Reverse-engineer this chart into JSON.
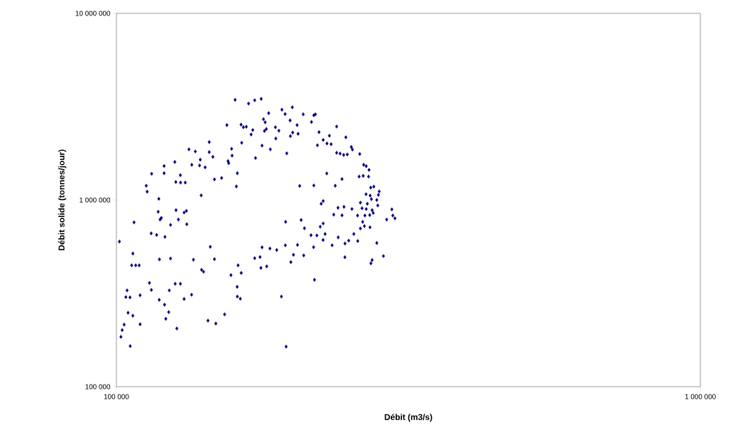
{
  "chart_data": {
    "type": "scatter",
    "xlabel": "Débit (m3/s)",
    "ylabel": "Débit solide (tonnes/jour)",
    "log": "xy",
    "marker": "diamond",
    "color": "#000080",
    "xlim": [
      100000,
      1000000
    ],
    "ylim": [
      100000,
      10000000
    ],
    "xticks": [
      {
        "value": 100000,
        "label": "100 000"
      },
      {
        "value": 1000000,
        "label": "1 000 000"
      }
    ],
    "yticks": [
      {
        "value": 100000,
        "label": "100 000"
      },
      {
        "value": 1000000,
        "label": "1 000 000"
      },
      {
        "value": 10000000,
        "label": "10 000 000"
      }
    ],
    "x": [
      144200,
      144200,
      133100,
      136500,
      139200,
      138800,
      141900,
      134600,
      125900,
      120700,
      120700,
      114900,
      128700,
      126400,
      128800,
      131200,
      112500,
      112900,
      139700,
      118200,
      117900,
      126500,
      130600,
      131800,
      119400,
      118800,
      127700,
      107200,
      123800,
      132000,
      159700,
      168400,
      172500,
      177000,
      182300,
      192100,
      194500,
      200100,
      208900,
      198400,
      203900,
      154600,
      163500,
      165000,
      166900,
      178600,
      179800,
      171200,
      170100,
      187200,
      189800,
      180600,
      179300,
      200400,
      198600,
      204700,
      187500,
      163900,
      177600,
      183500,
      195800,
      157500,
      146300,
      157800,
      155300,
      155700,
      173100,
      161100,
      151400,
      147200,
      160500,
      206000,
      194900,
      207200,
      217800,
      219200,
      215800,
      238300,
      222300,
      231600,
      247100,
      226000,
      229400,
      233200,
      220900,
      252500,
      253600,
      238300,
      241600,
      245000,
      248500,
      261000,
      265100,
      267800,
      270800,
      229200,
      260400,
      264600,
      270300,
      243400,
      217800,
      237000,
      272600,
      275900,
      281900,
      267600,
      272000,
      273300,
      281000,
      279200,
      261700,
      269000,
      226000,
      224200,
      280300,
      239600,
      245300,
      253100,
      263400,
      267800,
      274100,
      296300,
      235600,
      243400,
      258800,
      266400,
      271500,
      275300,
      297400,
      290300,
      299900,
      264100,
      226000,
      114700,
      117200,
      121100,
      101200,
      106700,
      144800,
      118500,
      123800,
      135500,
      106200,
      107900,
      109400,
      139900,
      141000,
      113900,
      114800,
      126100,
      128700,
      104300,
      103800,
      105500,
      109800,
      123200,
      118400,
      120900,
      130600,
      134500,
      104700,
      106700,
      122900,
      121500,
      103100,
      109800,
      102300,
      126900,
      143500,
      101800,
      105600,
      209900,
      177600,
      183200,
      188200,
      194700,
      204200,
      147200,
      172500,
      176200,
      201000,
      209300,
      199000,
      161600,
      176800,
      180900,
      163600,
      157100,
      161000,
      161100,
      163000,
      191700,
      153200,
      148000,
      195300,
      223400,
      215400,
      220400,
      227700,
      225900,
      217600,
      239800,
      234100,
      255000,
      246300,
      249900,
      259000,
      261700,
      265900,
      271800,
      279200,
      246200,
      274100,
      272800,
      286600,
      218400
    ],
    "values": [
      2044000,
      1806000,
      1869000,
      1821000,
      1645000,
      1531000,
      1496000,
      1545000,
      1599000,
      1522000,
      1392000,
      1383000,
      1359000,
      1250000,
      1240000,
      1240000,
      1193000,
      1109000,
      1059000,
      1015000,
      865000,
      883000,
      857000,
      875000,
      802000,
      786000,
      786000,
      759000,
      736000,
      742000,
      3442000,
      3287000,
      3424000,
      3484000,
      2920000,
      3048000,
      2887000,
      3140000,
      2880000,
      2671000,
      2520000,
      2520000,
      2535000,
      2455000,
      2470000,
      2710000,
      2609000,
      2371000,
      2244000,
      2455000,
      2351000,
      2400000,
      2345000,
      2298000,
      2200000,
      2264000,
      2136000,
      2027000,
      1958000,
      1869000,
      1779000,
      1881000,
      1704000,
      1729000,
      1617000,
      1576000,
      1680000,
      1392000,
      1313000,
      1290000,
      1183000,
      1190000,
      764000,
      782000,
      2845000,
      2880000,
      2618000,
      2476000,
      2310000,
      2211000,
      2168000,
      2099000,
      2009000,
      1992000,
      1965000,
      1924000,
      1864000,
      1790000,
      1774000,
      1744000,
      1754000,
      1764000,
      1545000,
      1518000,
      1450000,
      1388000,
      1336000,
      1347000,
      1336000,
      1295000,
      1197000,
      1193000,
      1166000,
      1180000,
      1112000,
      1074000,
      1056000,
      1011000,
      1065000,
      1000000,
      968000,
      955000,
      988000,
      955000,
      935000,
      909000,
      919000,
      895000,
      903000,
      895000,
      883000,
      891000,
      835000,
      828000,
      826000,
      826000,
      831000,
      853000,
      826000,
      786000,
      798000,
      764000,
      749000,
      663000,
      650000,
      635000,
      599000,
      517000,
      562000,
      481000,
      486000,
      479000,
      447000,
      447000,
      447000,
      423000,
      413000,
      360000,
      330000,
      356000,
      356000,
      328000,
      302000,
      301000,
      309000,
      328000,
      292000,
      275000,
      295000,
      311000,
      249000,
      240000,
      251000,
      231000,
      215000,
      216000,
      201000,
      205000,
      226000,
      185000,
      165000,
      706000,
      558000,
      550000,
      540000,
      572000,
      575000,
      482000,
      488000,
      495000,
      509000,
      505000,
      465000,
      447000,
      433000,
      441000,
      407000,
      396000,
      343000,
      304000,
      296000,
      304000,
      244000,
      218000,
      164000,
      720000,
      648000,
      646000,
      658000,
      611000,
      559000,
      631000,
      572000,
      658000,
      585000,
      606000,
      603000,
      704000,
      725000,
      714000,
      589000,
      494000,
      477000,
      458000,
      501000,
      374000
    ]
  }
}
